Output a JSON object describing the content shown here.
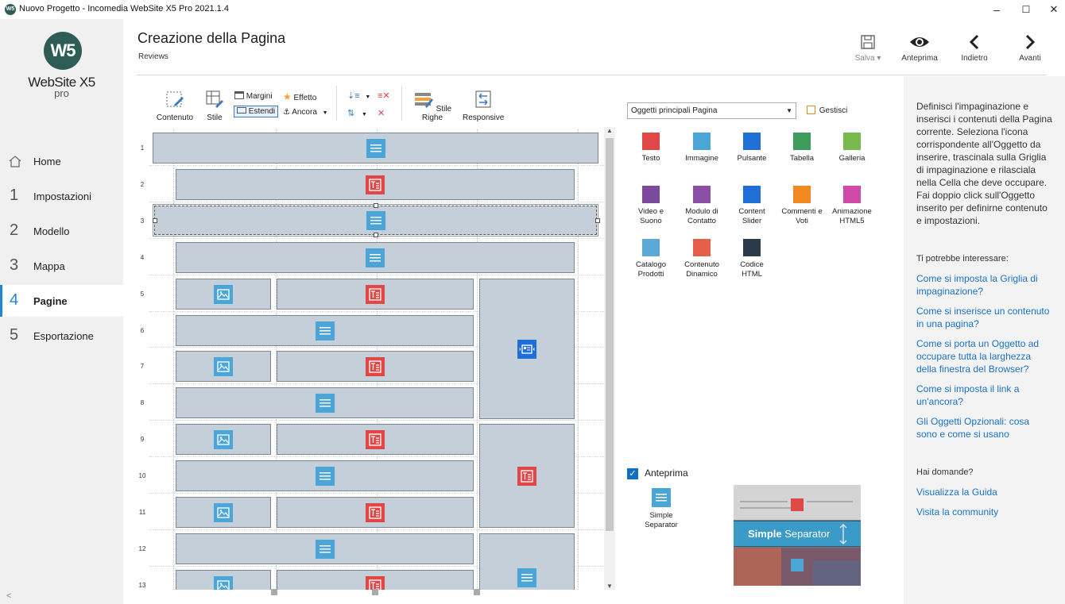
{
  "window": {
    "title": "Nuovo Progetto - Incomedia WebSite X5 Pro 2021.1.4",
    "minimize": "–",
    "maximize": "☐",
    "close": "✕"
  },
  "sidebar": {
    "logo_mark": "W5",
    "logo_text": "WebSite X5",
    "logo_sub": "pro",
    "collapse": "<",
    "items": [
      {
        "num": "",
        "label": "Home",
        "icon": "home-icon"
      },
      {
        "num": "1",
        "label": "Impostazioni"
      },
      {
        "num": "2",
        "label": "Modello"
      },
      {
        "num": "3",
        "label": "Mappa"
      },
      {
        "num": "4",
        "label": "Pagine"
      },
      {
        "num": "5",
        "label": "Esportazione"
      }
    ],
    "active_index": 4
  },
  "header": {
    "title": "Creazione della Pagina",
    "subtitle": "Reviews",
    "buttons": {
      "save": "Salva ▾",
      "preview": "Anteprima",
      "back": "Indietro",
      "forward": "Avanti"
    }
  },
  "toolbar": {
    "contenuto": "Contenuto",
    "stile": "Stile",
    "margini": "Margini",
    "effetto": "Effetto",
    "estendi": "Estendi",
    "ancora": "Ancora",
    "stile_righe": "Stile Righe",
    "responsive": "Responsive"
  },
  "grid": {
    "row_labels": [
      "1",
      "2",
      "3",
      "4",
      "5",
      "6",
      "7",
      "8",
      "9",
      "10",
      "11",
      "12",
      "13"
    ]
  },
  "objects": {
    "combo_value": "Oggetti principali Pagina",
    "manage": "Gestisci",
    "items": [
      {
        "label": "Testo",
        "icon": "text-object-icon",
        "color": "#e04848"
      },
      {
        "label": "Immagine",
        "icon": "image-object-icon",
        "color": "#4ba5d6"
      },
      {
        "label": "Pulsante",
        "icon": "button-object-icon",
        "color": "#1f6fd6"
      },
      {
        "label": "Tabella",
        "icon": "table-object-icon",
        "color": "#3e9b5b"
      },
      {
        "label": "Galleria",
        "icon": "gallery-object-icon",
        "color": "#79b84a"
      },
      {
        "label": "Video e\nSuono",
        "icon": "video-object-icon",
        "color": "#7b4a9e"
      },
      {
        "label": "Modulo di\nContatto",
        "icon": "contact-form-icon",
        "color": "#8b4fa8"
      },
      {
        "label": "Content\nSlider",
        "icon": "content-slider-icon",
        "color": "#1f6fd6"
      },
      {
        "label": "Commenti e\nVoti",
        "icon": "comments-object-icon",
        "color": "#f08a20"
      },
      {
        "label": "Animazione\nHTML5",
        "icon": "animation-object-icon",
        "color": "#d04aa8"
      },
      {
        "label": "Catalogo\nProdotti",
        "icon": "catalog-object-icon",
        "color": "#5aa8d8"
      },
      {
        "label": "Contenuto\nDinamico",
        "icon": "dynamic-content-icon",
        "color": "#e46048"
      },
      {
        "label": "Codice\nHTML",
        "icon": "html-code-icon",
        "color": "#2a3a4a"
      }
    ],
    "preview_label": "Anteprima",
    "preview_item": "Simple\nSeparator",
    "preview_banner_bold": "Simple",
    "preview_banner_rest": " Separator"
  },
  "help": {
    "intro": "Definisci l'impaginazione e inserisci i contenuti della Pagina corrente. Seleziona l'icona corrispondente all'Oggetto da inserire, trascinala sulla Griglia di impaginazione e rilasciala nella Cella che deve occupare. Fai doppio click sull'Oggetto inserito per definirne contenuto e impostazioni.",
    "section1": "Ti potrebbe interessare:",
    "links": [
      "Come si imposta la Griglia di impaginazione?",
      "Come si inserisce un contenuto in una pagina?",
      "Come si porta un Oggetto ad occupare tutta la larghezza della finestra del Browser?",
      "Come si imposta il link a un'ancora?",
      "Gli Oggetti Opzionali: cosa sono e come si usano"
    ],
    "section2": "Hai domande?",
    "links2": [
      "Visualizza la Guida",
      "Visita la community"
    ]
  }
}
